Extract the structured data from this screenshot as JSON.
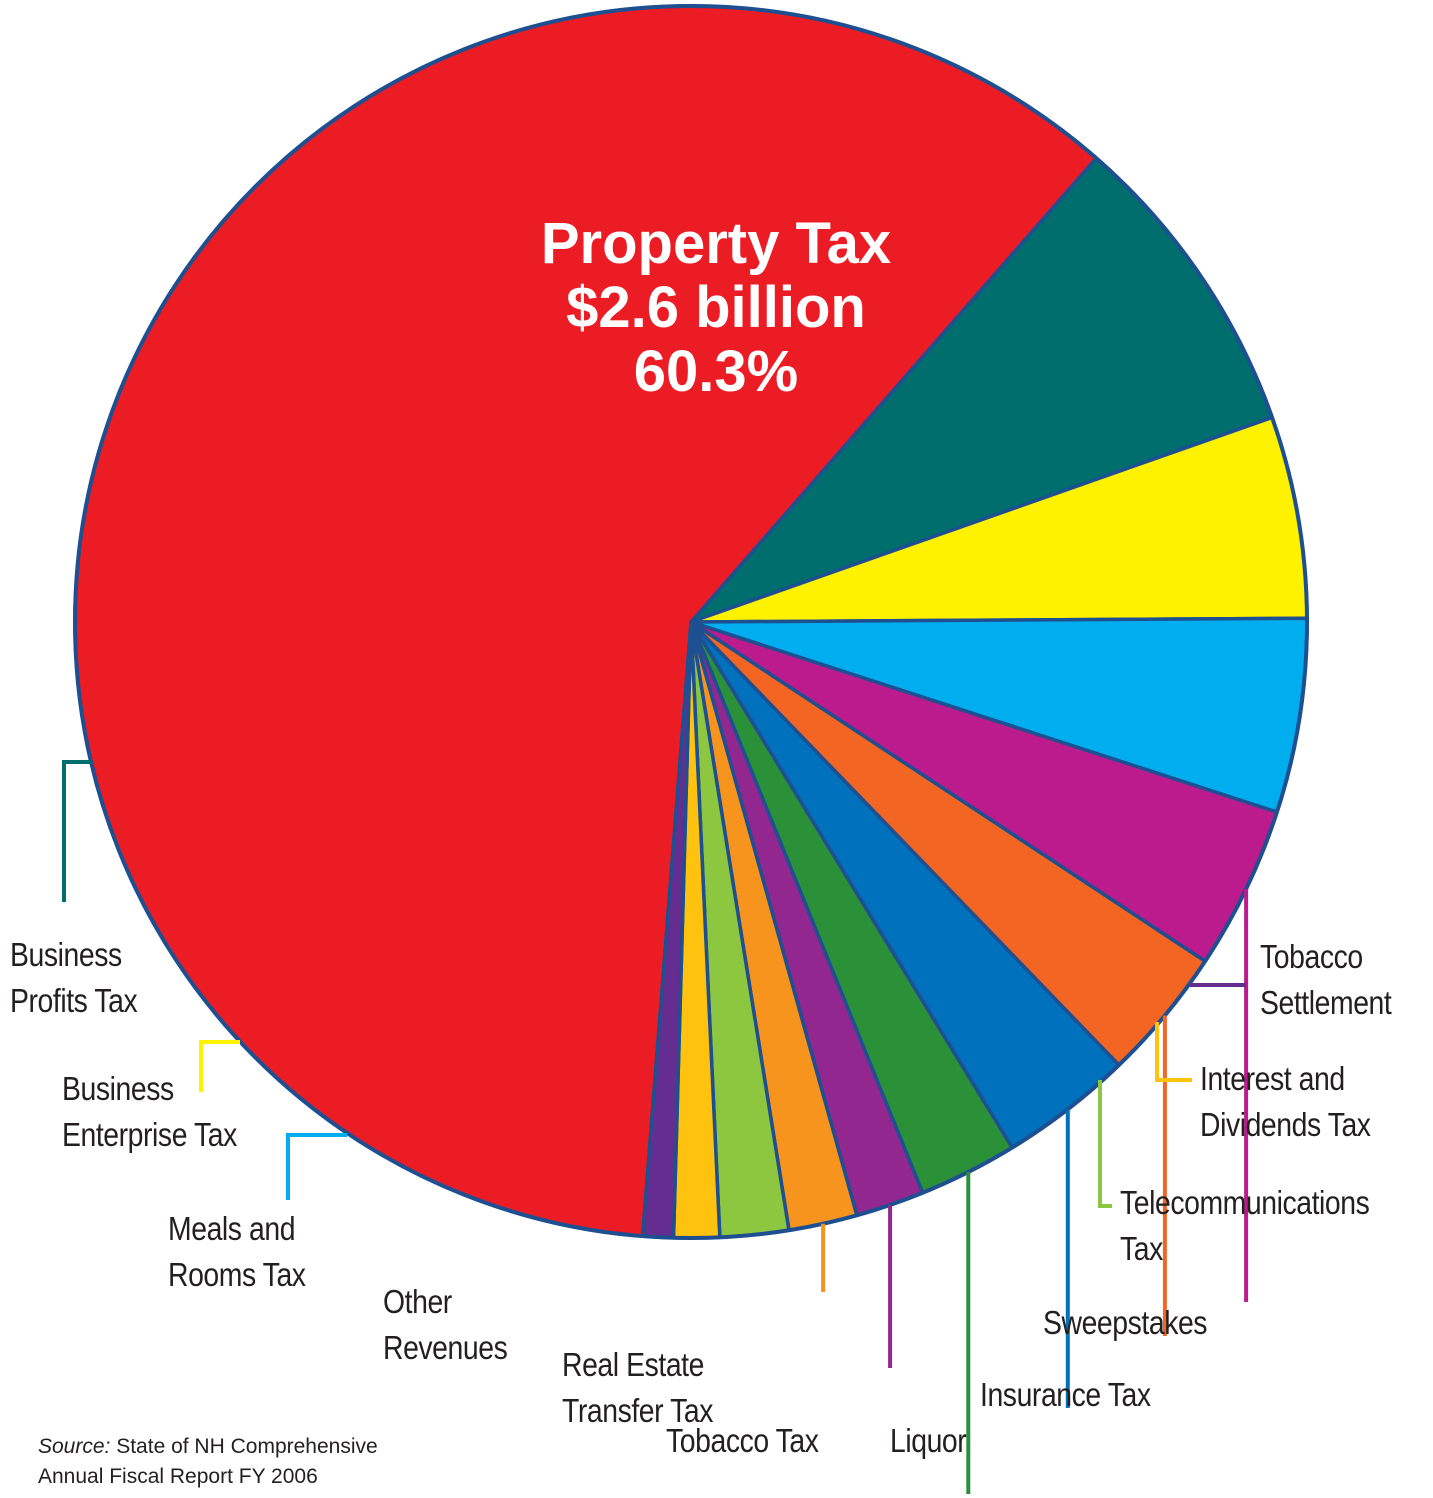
{
  "chart_data": {
    "type": "pie",
    "center_label": {
      "name": "Property Tax",
      "amount": "$2.6 billion",
      "percent": "60.3%"
    },
    "slices": [
      {
        "name": "Property Tax",
        "lines": [
          "Property Tax"
        ],
        "value": 60.3,
        "color": "#ec1c24"
      },
      {
        "name": "Business Profits Tax",
        "lines": [
          "Business",
          "Profits Tax"
        ],
        "value": 8.2,
        "color": "#006e6d"
      },
      {
        "name": "Business Enterprise Tax",
        "lines": [
          "Business",
          "Enterprise Tax"
        ],
        "value": 5.3,
        "color": "#fff200"
      },
      {
        "name": "Meals and Rooms Tax",
        "lines": [
          "Meals and",
          "Rooms Tax"
        ],
        "value": 5.1,
        "color": "#00aeef"
      },
      {
        "name": "Other Revenues",
        "lines": [
          "Other",
          "Revenues"
        ],
        "value": 4.3,
        "color": "#bb1b8c"
      },
      {
        "name": "Real Estate Transfer Tax",
        "lines": [
          "Real Estate",
          "Transfer Tax"
        ],
        "value": 3.5,
        "color": "#f26522"
      },
      {
        "name": "Tobacco Tax",
        "lines": [
          "Tobacco Tax"
        ],
        "value": 3.5,
        "color": "#0071bc"
      },
      {
        "name": "Liquor",
        "lines": [
          "Liquor"
        ],
        "value": 2.6,
        "color": "#2a9138"
      },
      {
        "name": "Insurance Tax",
        "lines": [
          "Insurance Tax"
        ],
        "value": 1.8,
        "color": "#92278f"
      },
      {
        "name": "Sweepstakes",
        "lines": [
          "Sweepstakes"
        ],
        "value": 1.8,
        "color": "#f7941d"
      },
      {
        "name": "Telecommunications Tax",
        "lines": [
          "Telecommunications",
          "Tax"
        ],
        "value": 1.8,
        "color": "#8dc63f"
      },
      {
        "name": "Interest and Dividends Tax",
        "lines": [
          "Interest and",
          "Dividends Tax"
        ],
        "value": 1.2,
        "color": "#ffc20e"
      },
      {
        "name": "Tobacco Settlement",
        "lines": [
          "Tobacco",
          "Settlement"
        ],
        "value": 0.8,
        "color": "#662d91"
      }
    ],
    "border_color": "#1d4f91"
  },
  "source": {
    "prefix": "Source:",
    "line1": "State of NH Comprehensive",
    "line2": "Annual Fiscal Report FY 2006"
  }
}
